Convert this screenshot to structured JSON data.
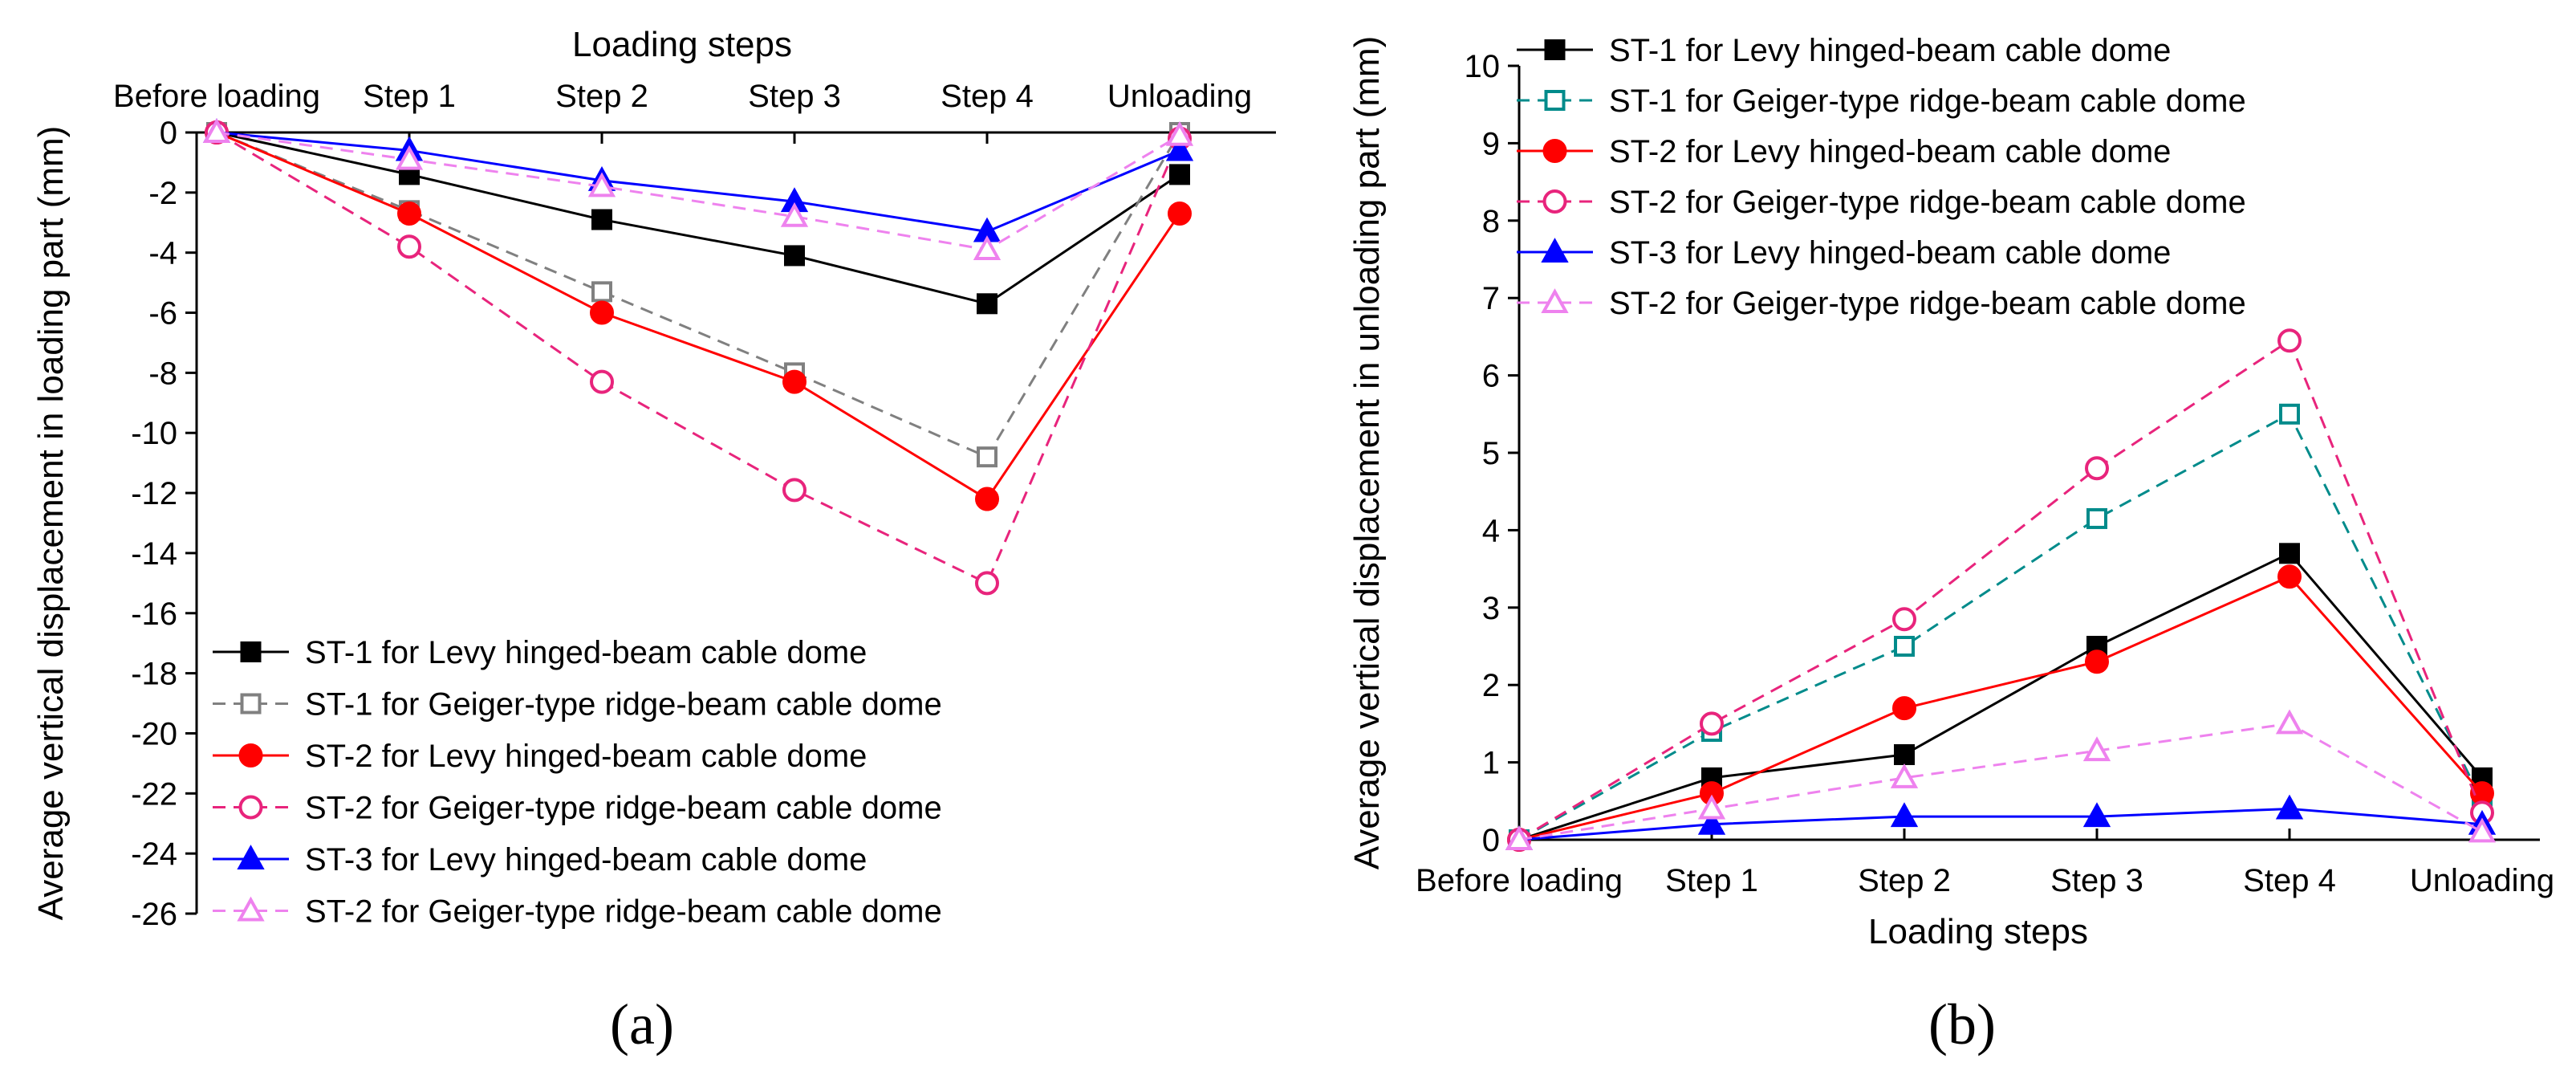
{
  "figure": {
    "panels": [
      {
        "label": "(a)"
      },
      {
        "label": "(b)"
      }
    ]
  },
  "chart_data": [
    {
      "type": "line",
      "panel": "(a)",
      "title": "",
      "xlabel": "Loading steps",
      "ylabel": "Average vertical displacement in loading part (mm)",
      "xaxis_position": "top",
      "categories": [
        "Before loading",
        "Step 1",
        "Step 2",
        "Step 3",
        "Step 4",
        "Unloading"
      ],
      "ylim": [
        -26,
        0
      ],
      "yticks": [
        0,
        -2,
        -4,
        -6,
        -8,
        -10,
        -12,
        -14,
        -16,
        -18,
        -20,
        -22,
        -24,
        -26
      ],
      "grid": false,
      "legend_position": "bottom-left",
      "series": [
        {
          "name": "ST-1 for Levy hinged-beam cable dome",
          "color": "#000000",
          "marker": "square",
          "filled": true,
          "dashed": false,
          "values": [
            0,
            -1.4,
            -2.9,
            -4.1,
            -5.7,
            -1.4
          ]
        },
        {
          "name": "ST-1 for Geiger-type ridge-beam cable dome",
          "color": "#808080",
          "marker": "square",
          "filled": false,
          "dashed": true,
          "values": [
            0,
            -2.6,
            -5.3,
            -8.0,
            -10.8,
            0
          ]
        },
        {
          "name": "ST-2 for Levy hinged-beam cable dome",
          "color": "#ff0000",
          "marker": "circle",
          "filled": true,
          "dashed": false,
          "values": [
            0,
            -2.7,
            -6.0,
            -8.3,
            -12.2,
            -2.7
          ]
        },
        {
          "name": "ST-2 for Geiger-type ridge-beam cable dome",
          "color": "#e8247c",
          "marker": "circle",
          "filled": false,
          "dashed": true,
          "values": [
            0,
            -3.8,
            -8.3,
            -11.9,
            -15.0,
            -0.2
          ]
        },
        {
          "name": "ST-3 for Levy hinged-beam cable dome",
          "color": "#0000ff",
          "marker": "triangle",
          "filled": true,
          "dashed": false,
          "values": [
            0,
            -0.6,
            -1.6,
            -2.3,
            -3.3,
            -0.6
          ]
        },
        {
          "name": "ST-2 for Geiger-type ridge-beam cable dome",
          "color": "#ee82ee",
          "marker": "triangle",
          "filled": false,
          "dashed": true,
          "values": [
            0,
            -0.9,
            -1.8,
            -2.8,
            -3.9,
            -0.1
          ]
        }
      ]
    },
    {
      "type": "line",
      "panel": "(b)",
      "title": "",
      "xlabel": "Loading steps",
      "ylabel": "Average vertical displacement in unloading part (mm)",
      "xaxis_position": "bottom",
      "categories": [
        "Before loading",
        "Step 1",
        "Step 2",
        "Step 3",
        "Step 4",
        "Unloading"
      ],
      "ylim": [
        0,
        10
      ],
      "yticks": [
        0,
        1,
        2,
        3,
        4,
        5,
        6,
        7,
        8,
        9,
        10
      ],
      "grid": false,
      "legend_position": "top-left",
      "series": [
        {
          "name": "ST-1 for Levy hinged-beam cable dome",
          "color": "#000000",
          "marker": "square",
          "filled": true,
          "dashed": false,
          "values": [
            0,
            0.8,
            1.1,
            2.5,
            3.7,
            0.8
          ]
        },
        {
          "name": "ST-1 for Geiger-type ridge-beam cable dome",
          "color": "#008b8b",
          "marker": "square",
          "filled": false,
          "dashed": true,
          "values": [
            0,
            1.4,
            2.5,
            4.15,
            5.5,
            0.5
          ]
        },
        {
          "name": "ST-2 for Levy hinged-beam cable dome",
          "color": "#ff0000",
          "marker": "circle",
          "filled": true,
          "dashed": false,
          "values": [
            0,
            0.6,
            1.7,
            2.3,
            3.4,
            0.6
          ]
        },
        {
          "name": "ST-2 for Geiger-type ridge-beam cable dome",
          "color": "#e8247c",
          "marker": "circle",
          "filled": false,
          "dashed": true,
          "values": [
            0,
            1.5,
            2.85,
            4.8,
            6.45,
            0.35
          ]
        },
        {
          "name": "ST-3 for Levy hinged-beam cable dome",
          "color": "#0000ff",
          "marker": "triangle",
          "filled": true,
          "dashed": false,
          "values": [
            0,
            0.2,
            0.3,
            0.3,
            0.4,
            0.2
          ]
        },
        {
          "name": "ST-2 for Geiger-type ridge-beam cable dome",
          "color": "#ee82ee",
          "marker": "triangle",
          "filled": false,
          "dashed": true,
          "values": [
            0,
            0.4,
            0.8,
            1.15,
            1.5,
            0.1
          ]
        }
      ]
    }
  ]
}
